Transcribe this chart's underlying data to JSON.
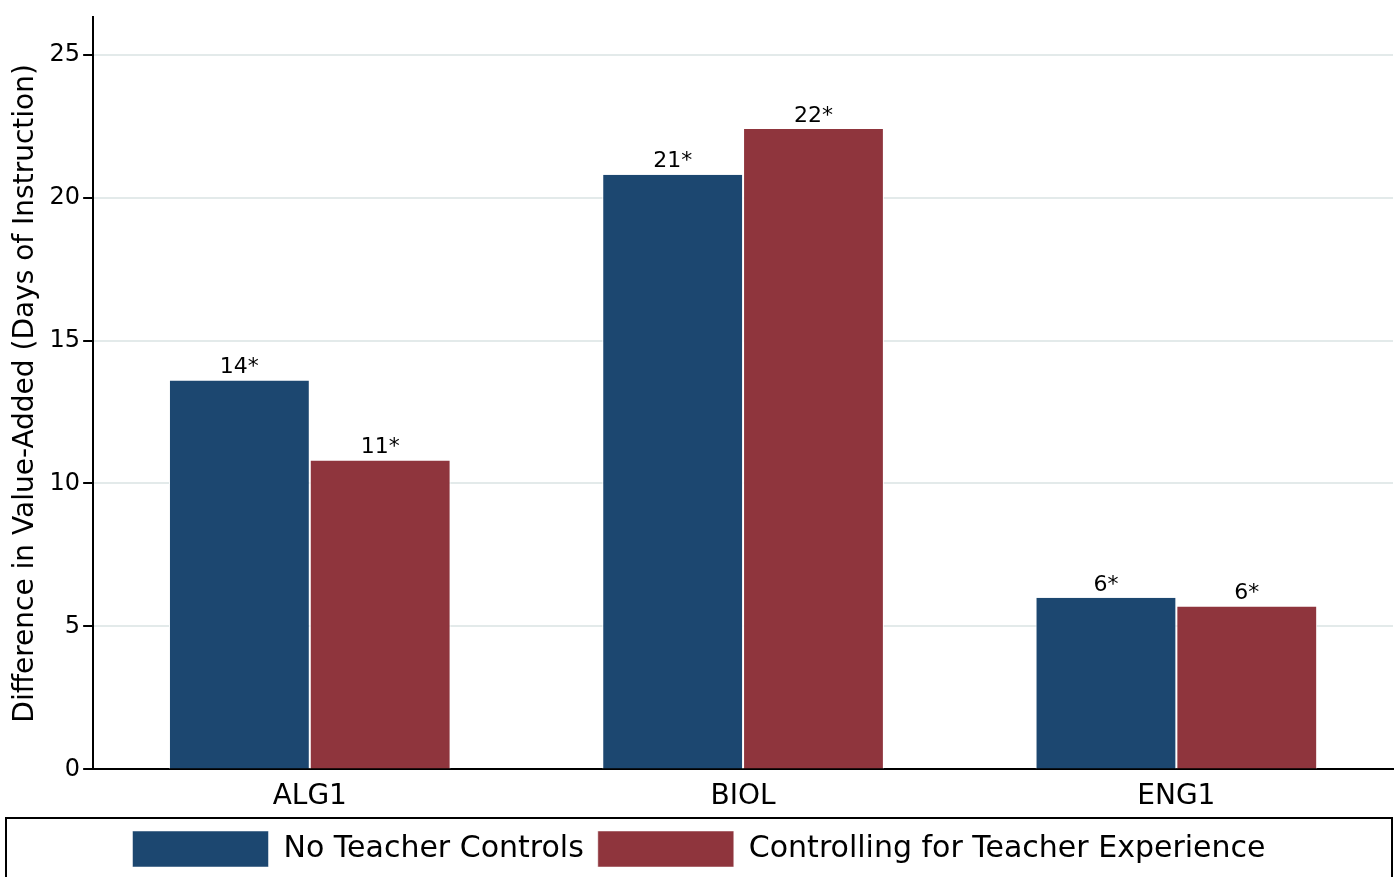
{
  "chart_data": {
    "type": "bar",
    "ylabel": "Difference in Value-Added (Days of Instruction)",
    "categories": [
      "ALG1",
      "BIOL",
      "ENG1"
    ],
    "series": [
      {
        "name": "No Teacher Controls",
        "color": "#1c4770",
        "values": [
          13.6,
          20.8,
          6.0
        ],
        "value_labels": [
          "14*",
          "21*",
          "6*"
        ]
      },
      {
        "name": "Controlling for Teacher Experience",
        "color": "#8f353d",
        "values": [
          10.8,
          22.4,
          5.7
        ],
        "value_labels": [
          "11*",
          "22*",
          "6*"
        ]
      }
    ],
    "ylim": [
      0,
      26.3
    ],
    "yticks": [
      0,
      5,
      10,
      15,
      20,
      25
    ],
    "grid": "y",
    "legend": "bottom"
  }
}
